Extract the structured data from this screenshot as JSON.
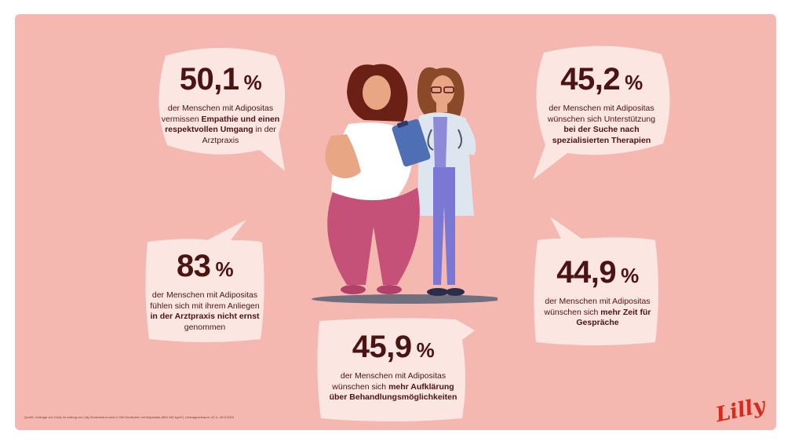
{
  "stats": [
    {
      "value": "50,1",
      "unit": "%",
      "text_pre": "der Menschen mit Adipositas vermissen ",
      "text_bold": "Empathie und einen respektvollen Umgang",
      "text_post": " in der Arztpraxis"
    },
    {
      "value": "45,2",
      "unit": "%",
      "text_pre": "der Menschen mit Adipositas wünschen sich Unterstützung ",
      "text_bold": "bei der Suche nach spezialisierten Therapien",
      "text_post": ""
    },
    {
      "value": "83",
      "unit": "%",
      "text_pre": "der Menschen mit Adipositas fühlen sich mit ihrem Anliegen ",
      "text_bold": "in der Arztpraxis nicht ernst",
      "text_post": " genommen"
    },
    {
      "value": "44,9",
      "unit": "%",
      "text_pre": "der Menschen mit Adipositas wünschen sich ",
      "text_bold": "mehr Zeit für Gespräche",
      "text_post": ""
    },
    {
      "value": "45,9",
      "unit": "%",
      "text_pre": "der Menschen mit Adipositas wünschen sich ",
      "text_bold": "mehr Aufklärung über Behandlungsmöglichkeiten",
      "text_post": ""
    }
  ],
  "source": "Quelle: Umfrage von Civey im Auftrag von Lilly Deutschland unter 2.000 Deutschen mit Adipositas (BMI ≥30 kg/m²), Umfragezeitraum: 22.4.–26.5.2023",
  "logo": "Lilly",
  "colors": {
    "background": "#f4b8b0",
    "bubble": "#fbe6e2",
    "text": "#4a1414",
    "brand": "#d52b1e"
  }
}
